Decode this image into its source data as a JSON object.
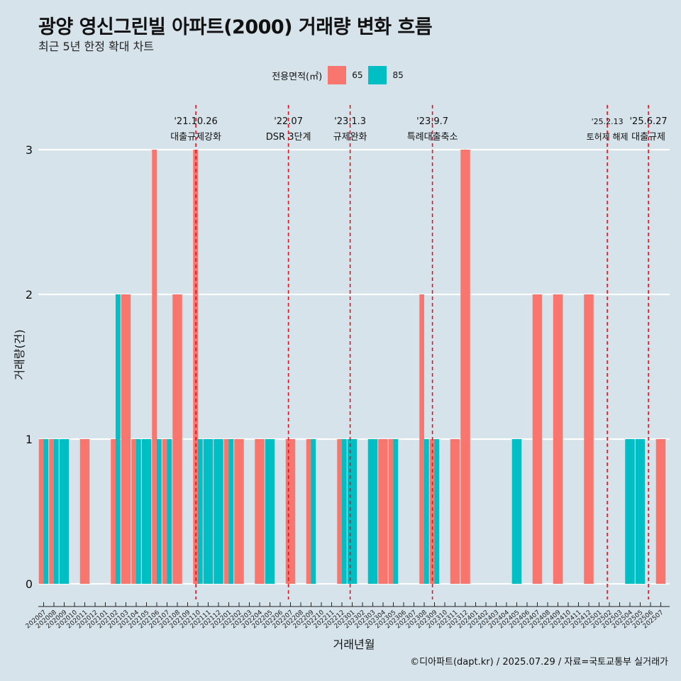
{
  "header": {
    "title": "광양 영신그린빌 아파트(2000) 거래량 변화 흐름",
    "subtitle": "최근 5년 한정 확대 차트"
  },
  "legend": {
    "title": "전용면적(㎡)",
    "items": [
      {
        "label": "65",
        "color": "#f8766d"
      },
      {
        "label": "85",
        "color": "#00bfc4"
      }
    ]
  },
  "caption": "©디아파트(dapt.kr) / 2025.07.29 / 자료=국토교통부 실거래가",
  "chart_data": {
    "type": "bar",
    "xlabel": "거래년월",
    "ylabel": "거래량(건)",
    "ylim": [
      0,
      3
    ],
    "yticks": [
      0,
      1,
      2,
      3
    ],
    "grid": true,
    "legend_position": "top",
    "categories": [
      "202007",
      "202008",
      "202009",
      "202010",
      "202011",
      "202012",
      "202101",
      "202102",
      "202103",
      "202104",
      "202105",
      "202106",
      "202107",
      "202108",
      "202109",
      "202110",
      "202111",
      "202112",
      "202201",
      "202202",
      "202203",
      "202204",
      "202205",
      "202206",
      "202207",
      "202208",
      "202209",
      "202210",
      "202211",
      "202212",
      "202301",
      "202302",
      "202303",
      "202304",
      "202305",
      "202306",
      "202307",
      "202308",
      "202309",
      "202310",
      "202311",
      "202312",
      "202401",
      "202402",
      "202403",
      "202404",
      "202405",
      "202406",
      "202407",
      "202408",
      "202409",
      "202410",
      "202411",
      "202412",
      "202501",
      "202502",
      "202503",
      "202504",
      "202505",
      "202506",
      "202507"
    ],
    "series": [
      {
        "name": "65",
        "color": "#f8766d",
        "values": [
          1,
          1,
          0,
          0,
          1,
          0,
          0,
          1,
          2,
          1,
          0,
          3,
          1,
          2,
          0,
          3,
          0,
          0,
          1,
          1,
          0,
          1,
          0,
          0,
          1,
          0,
          1,
          0,
          0,
          1,
          0,
          0,
          0,
          1,
          1,
          0,
          0,
          2,
          1,
          0,
          1,
          3,
          0,
          0,
          0,
          0,
          0,
          0,
          2,
          0,
          2,
          0,
          0,
          2,
          0,
          0,
          0,
          0,
          0,
          0,
          1
        ]
      },
      {
        "name": "85",
        "color": "#00bfc4",
        "values": [
          1,
          1,
          1,
          0,
          0,
          0,
          0,
          2,
          0,
          1,
          1,
          1,
          1,
          0,
          0,
          1,
          1,
          1,
          1,
          0,
          0,
          0,
          1,
          0,
          0,
          0,
          1,
          0,
          0,
          1,
          1,
          0,
          1,
          0,
          1,
          0,
          0,
          1,
          1,
          0,
          0,
          0,
          0,
          0,
          0,
          0,
          1,
          0,
          0,
          0,
          0,
          0,
          0,
          0,
          0,
          0,
          0,
          1,
          1,
          0,
          0
        ]
      }
    ],
    "annotations": [
      {
        "date": "'21.10.26",
        "label": "대출규제강화",
        "x": "202110"
      },
      {
        "date": "'22.07",
        "label": "DSR 3단계",
        "x": "202207"
      },
      {
        "date": "'23.1.3",
        "label": "규제완화",
        "x": "202301"
      },
      {
        "date": "'23.9.7",
        "label": "특례대출축소",
        "x": "202309"
      },
      {
        "date": "'25.2.13",
        "label": "토허제 해제",
        "x": "202502"
      },
      {
        "date": "'25.6.27",
        "label": "대출규제",
        "x": "202506"
      }
    ]
  }
}
